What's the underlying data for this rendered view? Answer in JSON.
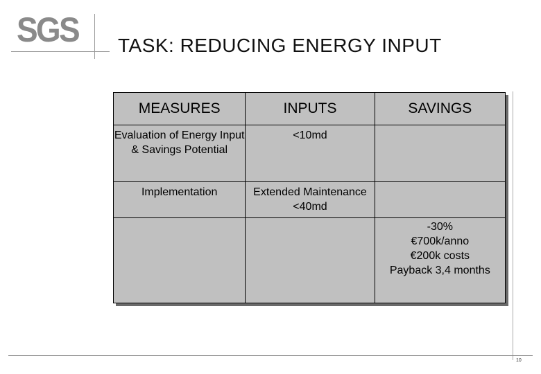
{
  "logo": {
    "text": "SGS"
  },
  "title": "TASK: REDUCING ENERGY INPUT",
  "table": {
    "headers": [
      "MEASURES",
      "INPUTS",
      "SAVINGS"
    ],
    "rows": [
      [
        "Evaluation of Energy Input & Savings Potential",
        "<10md",
        ""
      ],
      [
        "Implementation",
        "Extended Maintenance <40md",
        ""
      ],
      [
        "",
        "",
        "-30%\n€700k/anno\n€200k costs\nPayback 3,4 months"
      ]
    ]
  },
  "page_number": "10",
  "colors": {
    "logo": "#8a8a8a",
    "table_bg": "#c0c0c0",
    "shadow": "#6a6a6a"
  }
}
